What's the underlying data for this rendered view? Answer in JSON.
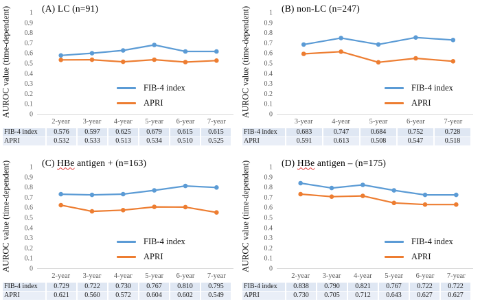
{
  "figure": {
    "background": "#ffffff",
    "type_note": "2x2 grid of Excel-style time-dependent AUROC line charts with data tables"
  },
  "colors": {
    "fib4_blue": "#5B9BD5",
    "apri_orange": "#ED7D31",
    "axis_line": "#D9D9D9",
    "tick_text": "#595959",
    "table_row1_fill": "#dfe7f3",
    "table_row2_fill": "#e9eef7",
    "squiggle_red": "#e53935"
  },
  "y_axis": {
    "label": "AUROC value (time-dependent)",
    "tick_labels": [
      "1",
      "0.9",
      "0.8",
      "0.7",
      "0.6",
      "0.5",
      "0.4",
      "0.3",
      "0.2",
      "0.1",
      "0"
    ],
    "min": 0,
    "max": 1
  },
  "chart_data": [
    {
      "type": "line",
      "id": "A",
      "title": "(A) LC (n=91)",
      "title_parts": [
        {
          "t": "(A) LC (n=91)",
          "sq": false
        }
      ],
      "ylabel": "AUROC value (time-dependent)",
      "ylim": [
        0,
        1
      ],
      "grid": false,
      "legend_position": "inside-lower-right",
      "categories": [
        "2-year",
        "3-year",
        "4-year",
        "5-year",
        "6-year",
        "7-year"
      ],
      "series": [
        {
          "name": "FIB-4 index",
          "color": "#5B9BD5",
          "values": [
            0.576,
            0.597,
            0.625,
            0.679,
            0.615,
            0.615
          ],
          "labels": [
            "0.576",
            "0.597",
            "0.625",
            "0.679",
            "0.615",
            "0.615"
          ]
        },
        {
          "name": "APRI",
          "color": "#ED7D31",
          "values": [
            0.532,
            0.533,
            0.513,
            0.534,
            0.51,
            0.525
          ],
          "labels": [
            "0.532",
            "0.533",
            "0.513",
            "0.534",
            "0.510",
            "0.525"
          ]
        }
      ]
    },
    {
      "type": "line",
      "id": "B",
      "title": "(B) non-LC (n=247)",
      "title_parts": [
        {
          "t": "(B) non-LC (n=247)",
          "sq": false
        }
      ],
      "ylabel": "AUROC value (time-dependent)",
      "ylim": [
        0,
        1
      ],
      "grid": false,
      "legend_position": "inside-lower-right",
      "categories": [
        "3-year",
        "4-year",
        "5-year",
        "6-year",
        "7-year"
      ],
      "series": [
        {
          "name": "FIB-4 index",
          "color": "#5B9BD5",
          "values": [
            0.683,
            0.747,
            0.684,
            0.752,
            0.728
          ],
          "labels": [
            "0.683",
            "0.747",
            "0.684",
            "0.752",
            "0.728"
          ]
        },
        {
          "name": "APRI",
          "color": "#ED7D31",
          "values": [
            0.591,
            0.613,
            0.508,
            0.547,
            0.518
          ],
          "labels": [
            "0.591",
            "0.613",
            "0.508",
            "0.547",
            "0.518"
          ]
        }
      ]
    },
    {
      "type": "line",
      "id": "C",
      "title": "(C) HBe antigen + (n=163)",
      "title_parts": [
        {
          "t": "(C) ",
          "sq": false
        },
        {
          "t": "HBe",
          "sq": true
        },
        {
          "t": " antigen + (n=163)",
          "sq": false
        }
      ],
      "ylabel": "AUROC value (time-dependent)",
      "ylim": [
        0,
        1
      ],
      "grid": false,
      "legend_position": "inside-lower-right",
      "categories": [
        "2-year",
        "3-year",
        "4-year",
        "5-year",
        "6-year",
        "7-year"
      ],
      "series": [
        {
          "name": "FIB-4 index",
          "color": "#5B9BD5",
          "values": [
            0.729,
            0.722,
            0.73,
            0.767,
            0.81,
            0.795
          ],
          "labels": [
            "0.729",
            "0.722",
            "0.730",
            "0.767",
            "0.810",
            "0.795"
          ]
        },
        {
          "name": "APRI",
          "color": "#ED7D31",
          "values": [
            0.621,
            0.56,
            0.572,
            0.604,
            0.602,
            0.549
          ],
          "labels": [
            "0.621",
            "0.560",
            "0.572",
            "0.604",
            "0.602",
            "0.549"
          ]
        }
      ]
    },
    {
      "type": "line",
      "id": "D",
      "title": "(D) HBe antigen – (n=175)",
      "title_parts": [
        {
          "t": "(D) ",
          "sq": false
        },
        {
          "t": "HBe",
          "sq": true
        },
        {
          "t": " antigen – (n=175)",
          "sq": false
        }
      ],
      "ylabel": "AUROC value (time-dependent)",
      "ylim": [
        0,
        1
      ],
      "grid": false,
      "legend_position": "inside-lower-right",
      "categories": [
        "2-year",
        "3-year",
        "4-year",
        "5-year",
        "6-year",
        "7-year"
      ],
      "series": [
        {
          "name": "FIB-4 index",
          "color": "#5B9BD5",
          "values": [
            0.838,
            0.79,
            0.821,
            0.767,
            0.722,
            0.722
          ],
          "labels": [
            "0.838",
            "0.790",
            "0.821",
            "0.767",
            "0.722",
            "0.722"
          ]
        },
        {
          "name": "APRI",
          "color": "#ED7D31",
          "values": [
            0.73,
            0.705,
            0.712,
            0.643,
            0.627,
            0.627
          ],
          "labels": [
            "0.730",
            "0.705",
            "0.712",
            "0.643",
            "0.627",
            "0.627"
          ]
        }
      ]
    }
  ]
}
